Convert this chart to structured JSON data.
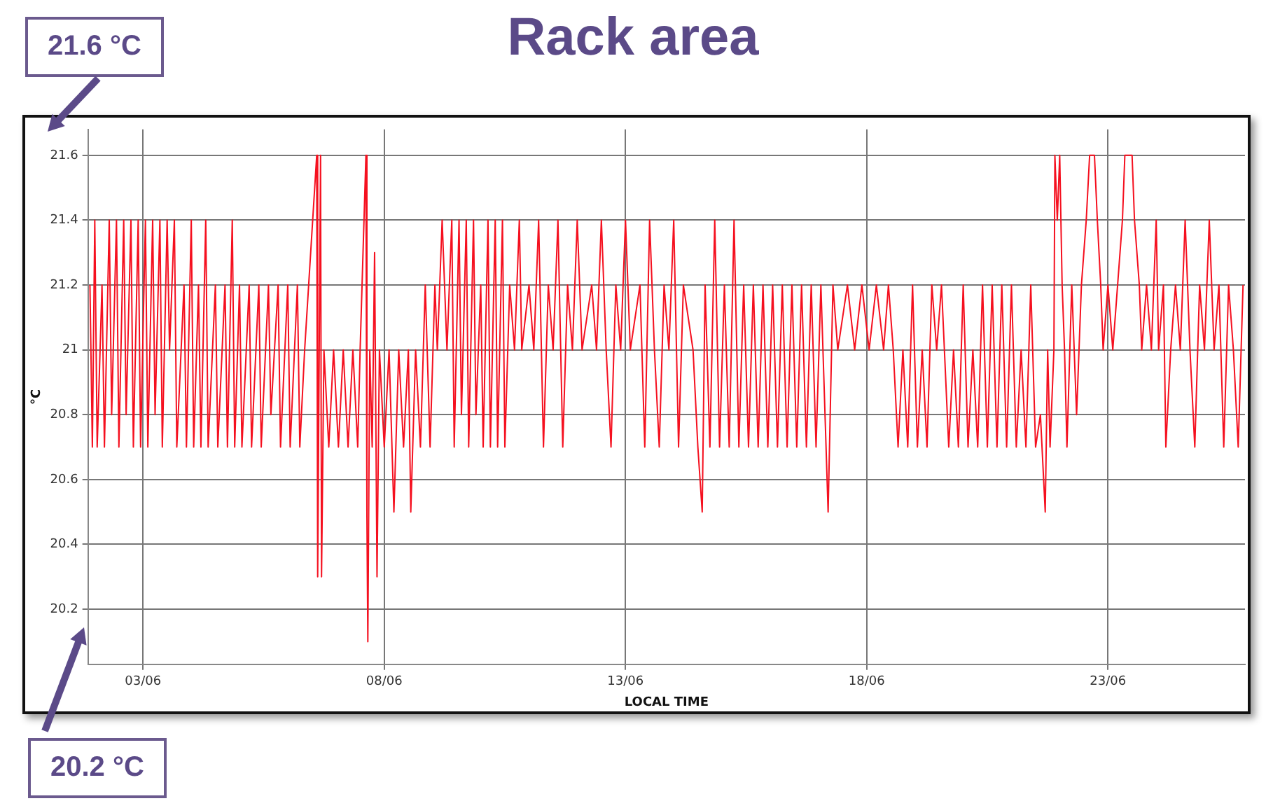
{
  "chart_data": {
    "type": "line",
    "title": "Rack area",
    "xlabel": "LOCAL TIME",
    "ylabel": "°C",
    "annotations": [
      "21.6 °C",
      "20.2 °C"
    ],
    "xlim": [
      "--06-01T20:38",
      "--06-25T20:10"
    ],
    "xticks": [
      {
        "value": "--06-03",
        "label": "03/06"
      },
      {
        "value": "--06-08",
        "label": "08/06"
      },
      {
        "value": "--06-13",
        "label": "13/06"
      },
      {
        "value": "--06-18",
        "label": "18/06"
      },
      {
        "value": "--06-23",
        "label": "23/06"
      }
    ],
    "ylim": [
      20.03,
      21.68
    ],
    "yticks": [
      20.2,
      20.4,
      20.6,
      20.8,
      21,
      21.2,
      21.4,
      21.6
    ],
    "grid": true,
    "legend": false,
    "series": [
      {
        "color": "#f5101f",
        "x": [
          "--06-01T21:36",
          "--06-01T22:48",
          "--06-02T00:00",
          "--06-02T01:12",
          "--06-02T03:36",
          "--06-02T04:48",
          "--06-02T07:12",
          "--06-02T08:24",
          "--06-02T10:48",
          "--06-02T12:00",
          "--06-02T14:24",
          "--06-02T15:36",
          "--06-02T18:00",
          "--06-02T19:12",
          "--06-02T21:36",
          "--06-02T22:48",
          "--06-03T01:12",
          "--06-03T02:24",
          "--06-03T04:48",
          "--06-03T06:00",
          "--06-03T08:24",
          "--06-03T09:36",
          "--06-03T12:00",
          "--06-03T13:12",
          "--06-03T15:36",
          "--06-03T16:48",
          "--06-03T20:24",
          "--06-03T21:36",
          "--06-04T00:00",
          "--06-04T01:12",
          "--06-04T03:36",
          "--06-04T04:48",
          "--06-04T07:12",
          "--06-04T08:24",
          "--06-04T12:00",
          "--06-04T13:12",
          "--06-04T16:48",
          "--06-04T18:00",
          "--06-04T20:24",
          "--06-04T21:36",
          "--06-05T00:00",
          "--06-05T01:12",
          "--06-05T04:48",
          "--06-05T06:00",
          "--06-05T09:36",
          "--06-05T10:48",
          "--06-05T14:24",
          "--06-05T15:36",
          "--06-05T19:12",
          "--06-05T20:24",
          "--06-06T00:00",
          "--06-06T01:12",
          "--06-06T04:48",
          "--06-06T06:00",
          "--06-06T08:24",
          "--06-06T14:24",
          "--06-06T14:53",
          "--06-06T16:19",
          "--06-06T16:48",
          "--06-06T18:00",
          "--06-06T20:24",
          "--06-06T22:48",
          "--06-07T01:12",
          "--06-07T03:36",
          "--06-07T06:00",
          "--06-07T08:24",
          "--06-07T10:48",
          "--06-07T12:00",
          "--06-07T14:53",
          "--06-07T15:22",
          "--06-07T15:50",
          "--06-07T16:48",
          "--06-07T18:00",
          "--06-07T19:12",
          "--06-07T20:24",
          "--06-07T21:36",
          "--06-08T00:00",
          "--06-08T02:24",
          "--06-08T04:48",
          "--06-08T07:12",
          "--06-08T09:36",
          "--06-08T12:00",
          "--06-08T13:12",
          "--06-08T15:36",
          "--06-08T18:00",
          "--06-08T20:24",
          "--06-08T22:48",
          "--06-09T01:12",
          "--06-09T02:24",
          "--06-09T04:48",
          "--06-09T07:12",
          "--06-09T09:36",
          "--06-09T10:48",
          "--06-09T13:12",
          "--06-09T14:24",
          "--06-09T16:48",
          "--06-09T18:00",
          "--06-09T20:24",
          "--06-09T21:36",
          "--06-10T00:00",
          "--06-10T01:12",
          "--06-10T03:36",
          "--06-10T04:48",
          "--06-10T07:12",
          "--06-10T08:24",
          "--06-10T10:48",
          "--06-10T12:00",
          "--06-10T14:24",
          "--06-10T16:48",
          "--06-10T19:12",
          "--06-10T20:24",
          "--06-11T00:00",
          "--06-11T02:24",
          "--06-11T04:48",
          "--06-11T07:12",
          "--06-11T09:36",
          "--06-11T12:00",
          "--06-11T14:24",
          "--06-11T16:48",
          "--06-11T19:12",
          "--06-11T21:36",
          "--06-12T00:00",
          "--06-12T02:24",
          "--06-12T07:12",
          "--06-12T09:36",
          "--06-12T12:00",
          "--06-12T14:24",
          "--06-12T16:48",
          "--06-12T19:12",
          "--06-12T21:36",
          "--06-13T00:00",
          "--06-13T02:24",
          "--06-13T07:12",
          "--06-13T09:36",
          "--06-13T12:00",
          "--06-13T14:24",
          "--06-13T16:48",
          "--06-13T19:12",
          "--06-13T21:36",
          "--06-14T00:00",
          "--06-14T02:24",
          "--06-14T04:48",
          "--06-14T09:36",
          "--06-14T12:00",
          "--06-14T14:10",
          "--06-14T15:36",
          "--06-14T18:00",
          "--06-14T20:24",
          "--06-14T22:48",
          "--06-15T01:12",
          "--06-15T03:36",
          "--06-15T06:00",
          "--06-15T08:24",
          "--06-15T10:48",
          "--06-15T13:12",
          "--06-15T15:36",
          "--06-15T18:00",
          "--06-15T20:24",
          "--06-15T22:48",
          "--06-16T01:12",
          "--06-16T03:36",
          "--06-16T06:00",
          "--06-16T08:24",
          "--06-16T10:48",
          "--06-16T13:12",
          "--06-16T15:36",
          "--06-16T18:00",
          "--06-16T20:24",
          "--06-16T22:48",
          "--06-17T01:12",
          "--06-17T04:48",
          "--06-17T07:12",
          "--06-17T09:36",
          "--06-17T14:24",
          "--06-17T18:00",
          "--06-17T21:36",
          "--06-18T01:12",
          "--06-18T04:48",
          "--06-18T08:24",
          "--06-18T10:48",
          "--06-18T13:12",
          "--06-18T15:36",
          "--06-18T18:00",
          "--06-18T20:24",
          "--06-18T22:48",
          "--06-19T01:12",
          "--06-19T03:36",
          "--06-19T06:00",
          "--06-19T08:24",
          "--06-19T10:48",
          "--06-19T13:12",
          "--06-19T16:48",
          "--06-19T19:12",
          "--06-19T21:36",
          "--06-20T00:00",
          "--06-20T02:24",
          "--06-20T04:48",
          "--06-20T07:12",
          "--06-20T09:36",
          "--06-20T12:00",
          "--06-20T14:24",
          "--06-20T16:48",
          "--06-20T19:12",
          "--06-20T21:36",
          "--06-21T00:00",
          "--06-21T02:24",
          "--06-21T04:48",
          "--06-21T07:12",
          "--06-21T09:36",
          "--06-21T12:00",
          "--06-21T14:24",
          "--06-21T16:48",
          "--06-21T18:00",
          "--06-21T19:12",
          "--06-21T21:07",
          "--06-21T21:36",
          "--06-21T22:48",
          "--06-22T00:00",
          "--06-22T01:12",
          "--06-22T02:24",
          "--06-22T03:36",
          "--06-22T06:00",
          "--06-22T07:12",
          "--06-22T08:24",
          "--06-22T10:48",
          "--06-22T13:12",
          "--06-22T14:53",
          "--06-22T17:17",
          "--06-22T18:43",
          "--06-22T20:24",
          "--06-22T21:36",
          "--06-23T00:00",
          "--06-23T02:24",
          "--06-23T04:48",
          "--06-23T07:12",
          "--06-23T08:24",
          "--06-23T12:00",
          "--06-23T13:12",
          "--06-23T15:36",
          "--06-23T16:48",
          "--06-23T19:12",
          "--06-23T21:36",
          "--06-24T00:00",
          "--06-24T01:12",
          "--06-24T03:36",
          "--06-24T04:48",
          "--06-24T07:12",
          "--06-24T09:36",
          "--06-24T12:00",
          "--06-24T14:24",
          "--06-24T16:48",
          "--06-24T19:12",
          "--06-24T21:36",
          "--06-25T00:00",
          "--06-25T02:24",
          "--06-25T04:48",
          "--06-25T07:12",
          "--06-25T09:36",
          "--06-25T12:00",
          "--06-25T14:24",
          "--06-25T16:48",
          "--06-25T19:12"
        ],
        "values": [
          21.2,
          20.7,
          21.4,
          20.7,
          21.2,
          20.7,
          21.4,
          20.8,
          21.4,
          20.7,
          21.4,
          20.8,
          21.4,
          20.7,
          21.4,
          20.7,
          21.4,
          20.7,
          21.4,
          20.8,
          21.4,
          20.7,
          21.4,
          21.0,
          21.4,
          20.7,
          21.2,
          20.7,
          21.4,
          20.7,
          21.2,
          20.7,
          21.4,
          20.7,
          21.2,
          20.7,
          21.2,
          20.7,
          21.4,
          20.7,
          21.2,
          20.7,
          21.2,
          20.7,
          21.2,
          20.7,
          21.2,
          20.8,
          21.2,
          20.7,
          21.2,
          20.7,
          21.2,
          20.7,
          21.0,
          21.6,
          20.3,
          21.6,
          20.3,
          21.0,
          20.7,
          21.0,
          20.7,
          21.0,
          20.7,
          21.0,
          20.7,
          21.0,
          21.6,
          20.5,
          20.1,
          21.0,
          20.7,
          21.3,
          20.3,
          21.0,
          20.7,
          21.0,
          20.5,
          21.0,
          20.7,
          21.0,
          20.5,
          21.0,
          20.7,
          21.2,
          20.7,
          21.2,
          21.0,
          21.4,
          21.0,
          21.4,
          20.7,
          21.4,
          20.8,
          21.4,
          20.7,
          21.4,
          20.8,
          21.2,
          20.7,
          21.4,
          20.7,
          21.4,
          20.7,
          21.4,
          20.7,
          21.2,
          21.0,
          21.4,
          21.0,
          21.2,
          21.0,
          21.4,
          20.7,
          21.2,
          21.0,
          21.4,
          20.7,
          21.2,
          21.0,
          21.4,
          21.0,
          21.2,
          21.0,
          21.4,
          21.0,
          20.7,
          21.2,
          21.0,
          21.4,
          21.0,
          21.2,
          20.7,
          21.4,
          21.0,
          20.7,
          21.2,
          21.0,
          21.4,
          20.7,
          21.2,
          21.0,
          20.7,
          20.5,
          21.2,
          20.7,
          21.4,
          20.7,
          21.2,
          20.7,
          21.4,
          20.7,
          21.2,
          20.7,
          21.2,
          20.7,
          21.2,
          20.7,
          21.2,
          20.7,
          21.2,
          20.7,
          21.2,
          20.7,
          21.2,
          20.7,
          21.2,
          20.7,
          21.2,
          20.5,
          21.2,
          21.0,
          21.2,
          21.0,
          21.2,
          21.0,
          21.2,
          21.0,
          21.2,
          21.0,
          20.7,
          21.0,
          20.7,
          21.2,
          20.7,
          21.0,
          20.7,
          21.2,
          21.0,
          21.2,
          20.7,
          21.0,
          20.7,
          21.2,
          20.7,
          21.0,
          20.7,
          21.2,
          20.7,
          21.2,
          20.7,
          21.2,
          20.7,
          21.2,
          20.7,
          21.0,
          20.7,
          21.2,
          20.7,
          20.8,
          20.5,
          21.0,
          20.7,
          21.0,
          21.6,
          21.4,
          21.6,
          21.2,
          21.0,
          20.7,
          21.2,
          21.0,
          20.8,
          21.2,
          21.4,
          21.6,
          21.6,
          21.4,
          21.2,
          21.0,
          21.2,
          21.0,
          21.2,
          21.4,
          21.6,
          21.6,
          21.4,
          21.2,
          21.0,
          21.2,
          21.0,
          21.4,
          21.0,
          21.2,
          20.7,
          21.0,
          21.2,
          21.0,
          21.4,
          21.0,
          20.7,
          21.2,
          21.0,
          21.4,
          21.0,
          21.2,
          20.7,
          21.2,
          21.0,
          20.7,
          21.2
        ]
      }
    ]
  }
}
